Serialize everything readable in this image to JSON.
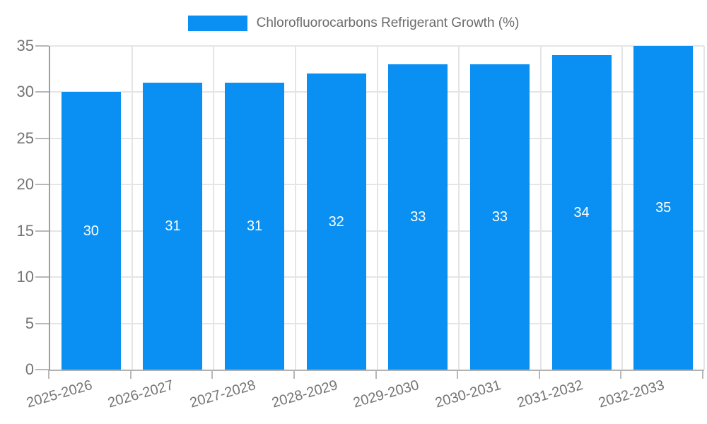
{
  "chart_data": {
    "type": "bar",
    "title": "",
    "legend_label": "Chlorofluorocarbons Refrigerant Growth (%)",
    "legend_position": "top-center",
    "categories": [
      "2025-2026",
      "2026-2027",
      "2027-2028",
      "2028-2029",
      "2029-2030",
      "2030-2031",
      "2031-2032",
      "2032-2033"
    ],
    "series": [
      {
        "name": "Chlorofluorocarbons Refrigerant Growth (%)",
        "values": [
          30,
          31,
          31,
          32,
          33,
          33,
          34,
          35
        ]
      }
    ],
    "value_labels": [
      "30",
      "31",
      "31",
      "32",
      "33",
      "33",
      "34",
      "35"
    ],
    "xlabel": "",
    "ylabel": "",
    "ylim": [
      0,
      35
    ],
    "ytick_step": 5,
    "ytick_labels": [
      "0",
      "5",
      "10",
      "15",
      "20",
      "25",
      "30",
      "35"
    ],
    "grid": true,
    "bar_color": "#0a8ff2",
    "axis_text_color": "#757575"
  }
}
